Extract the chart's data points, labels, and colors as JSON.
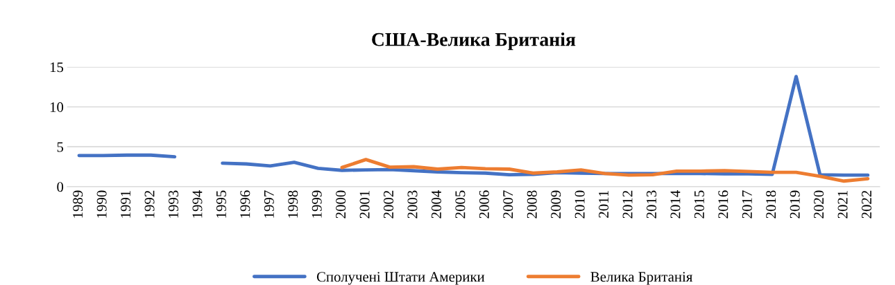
{
  "chart_data": {
    "type": "line",
    "title": "США-Велика Британія",
    "categories": [
      "1989",
      "1990",
      "1991",
      "1992",
      "1993",
      "1994",
      "1995",
      "1996",
      "1997",
      "1998",
      "1999",
      "2000",
      "2001",
      "2002",
      "2003",
      "2004",
      "2005",
      "2006",
      "2007",
      "2008",
      "2009",
      "2010",
      "2011",
      "2012",
      "2013",
      "2014",
      "2015",
      "2016",
      "2017",
      "2018",
      "2019",
      "2020",
      "2021",
      "2022"
    ],
    "series": [
      {
        "name": "Сполучені Штати Америки",
        "color": "#4472c4",
        "values": [
          3.9,
          3.9,
          3.95,
          3.95,
          3.75,
          null,
          2.95,
          2.85,
          2.6,
          3.05,
          2.3,
          2.05,
          2.1,
          2.15,
          2.0,
          1.85,
          1.75,
          1.7,
          1.5,
          1.55,
          1.75,
          1.7,
          1.65,
          1.65,
          1.65,
          1.65,
          1.65,
          1.6,
          1.6,
          1.55,
          13.8,
          1.5,
          1.45,
          1.45
        ]
      },
      {
        "name": "Велика Британія",
        "color": "#ed7d31",
        "values": [
          null,
          null,
          null,
          null,
          null,
          null,
          null,
          null,
          null,
          null,
          null,
          2.4,
          3.4,
          2.45,
          2.5,
          2.2,
          2.4,
          2.25,
          2.2,
          1.7,
          1.85,
          2.1,
          1.65,
          1.45,
          1.5,
          1.95,
          1.95,
          2.0,
          1.9,
          1.8,
          1.8,
          1.3,
          0.7,
          1.0
        ]
      }
    ],
    "ylim": [
      0,
      15
    ],
    "yticks": [
      0,
      5,
      10,
      15
    ],
    "grid": "y",
    "legend": "bottom",
    "marker": "none",
    "line_style": "solid"
  }
}
